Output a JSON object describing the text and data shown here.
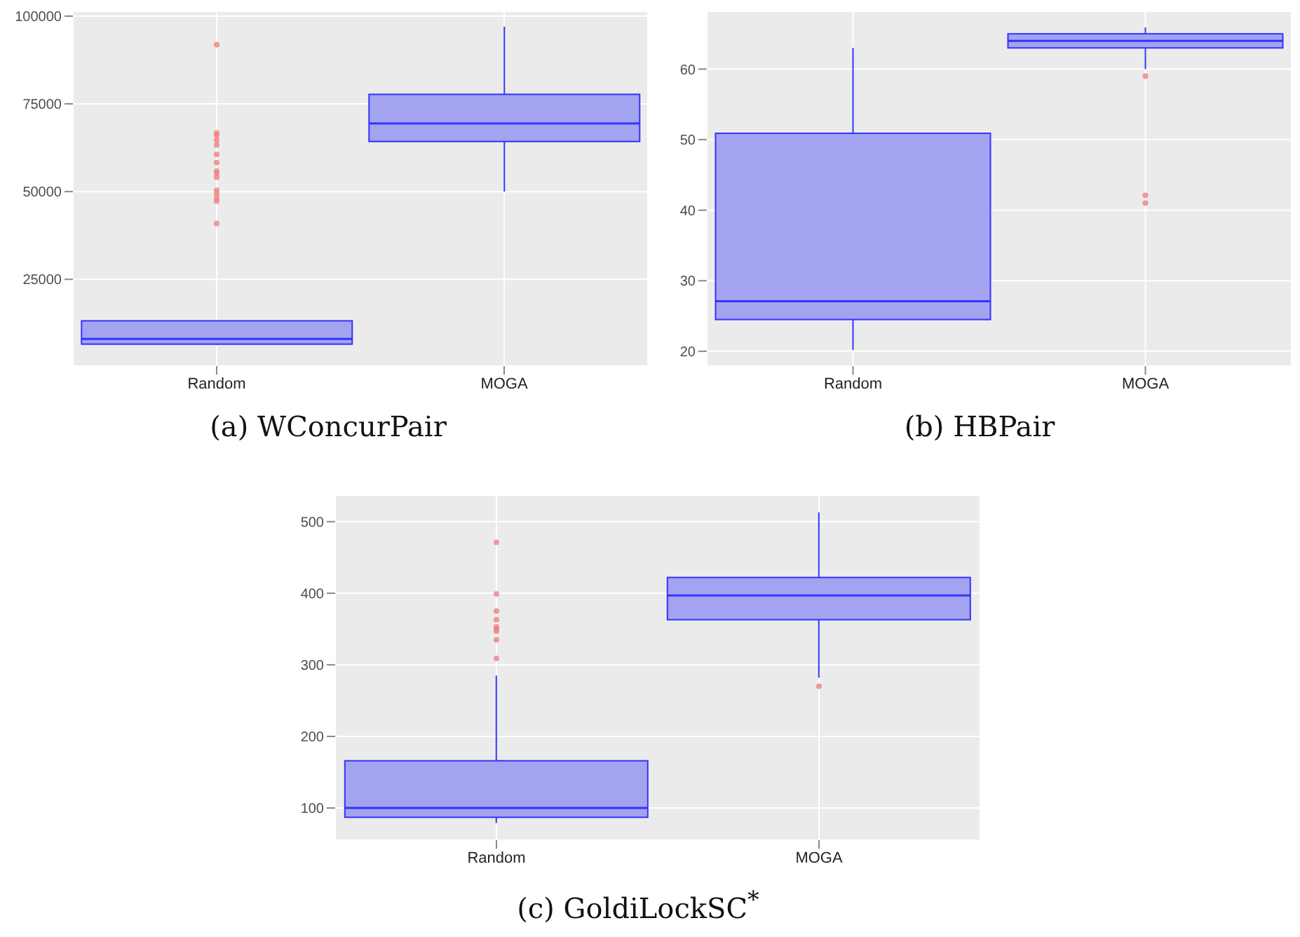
{
  "chart_data": [
    {
      "type": "box",
      "title": "(a) WConcurPair",
      "categories": [
        "Random",
        "MOGA"
      ],
      "ylim": [
        270,
        101400
      ],
      "yticks": [
        25000,
        50000,
        75000,
        100000
      ],
      "grid": true,
      "series": [
        {
          "color": "#a3a3f0",
          "boxes": [
            {
              "low": 6300,
              "q1": 6530,
              "median": 8020,
              "q3": 13180,
              "high": 13180,
              "outliers": [
                91850,
                66710,
                66030,
                64670,
                63300,
                60600,
                58290,
                55840,
                55160,
                54080,
                50410,
                49320,
                48100,
                47280,
                40900
              ]
            },
            {
              "low": 50000,
              "q1": 64270,
              "median": 69430,
              "q3": 77720,
              "high": 97010
            }
          ]
        }
      ]
    },
    {
      "type": "box",
      "title": "(b) HBPair",
      "categories": [
        "Random",
        "MOGA"
      ],
      "ylim": [
        17.9,
        68.2
      ],
      "yticks": [
        20,
        30,
        40,
        50,
        60
      ],
      "grid": true,
      "series": [
        {
          "color": "#a3a3f0",
          "boxes": [
            {
              "low": 20.2,
              "q1": 24.5,
              "median": 27.1,
              "q3": 50.9,
              "high": 63
            },
            {
              "low": 60,
              "q1": 63,
              "median": 64,
              "q3": 65,
              "high": 65.9,
              "outliers": [
                59,
                42.1,
                41
              ]
            }
          ]
        }
      ]
    },
    {
      "type": "box",
      "title": "(c) GoldiLockSC$^{*}$",
      "categories": [
        "Random",
        "MOGA"
      ],
      "ylim": [
        55,
        537
      ],
      "yticks": [
        100,
        200,
        300,
        400,
        500
      ],
      "grid": true,
      "series": [
        {
          "color": "#a3a3f0",
          "boxes": [
            {
              "low": 79,
              "q1": 87,
              "median": 100,
              "q3": 166,
              "high": 285,
              "outliers": [
                471,
                399,
                375,
                363,
                353,
                350,
                347,
                335,
                309
              ]
            },
            {
              "low": 282,
              "q1": 363,
              "median": 397,
              "q3": 422,
              "high": 513,
              "outliers": [
                270
              ]
            }
          ]
        }
      ]
    }
  ]
}
